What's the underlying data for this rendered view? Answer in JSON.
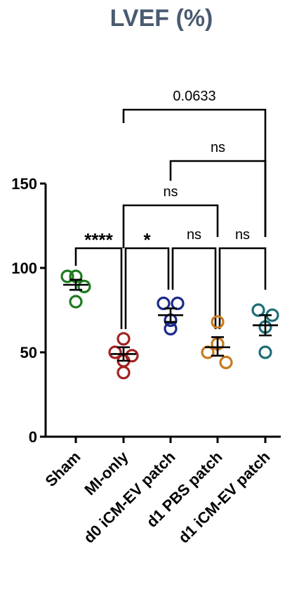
{
  "chart_data": {
    "type": "scatter",
    "title": "LVEF (%)",
    "xlabel": "",
    "ylabel": "",
    "ylim": [
      0,
      150
    ],
    "yticks": [
      0,
      50,
      100,
      150
    ],
    "categories": [
      "Sham",
      "MI-only",
      "d0 iCM-EV patch",
      "d1 PBS patch",
      "d1 iCM-EV patch"
    ],
    "colors": [
      "#1f7a1f",
      "#a32020",
      "#1c2a8a",
      "#c87a1e",
      "#1d6e76"
    ],
    "groups": [
      {
        "category": "Sham",
        "points": [
          95,
          95,
          89,
          80
        ],
        "mean": 90,
        "sem_low": 87,
        "sem_high": 93
      },
      {
        "category": "MI-only",
        "points": [
          58,
          50,
          48,
          45,
          38
        ],
        "mean": 49,
        "sem_low": 45,
        "sem_high": 53
      },
      {
        "category": "d0 iCM-EV patch",
        "points": [
          79,
          79,
          69,
          64
        ],
        "mean": 72,
        "sem_low": 68,
        "sem_high": 76
      },
      {
        "category": "d1 PBS patch",
        "points": [
          68,
          55,
          50,
          44
        ],
        "mean": 53,
        "sem_low": 48,
        "sem_high": 59
      },
      {
        "category": "d1 iCM-EV patch",
        "points": [
          75,
          72,
          65,
          50
        ],
        "mean": 66,
        "sem_low": 60,
        "sem_high": 72
      }
    ],
    "comparisons": [
      {
        "from": 0,
        "to": 1,
        "label": "****",
        "style": "bold"
      },
      {
        "from": 1,
        "to": 2,
        "label": "*",
        "style": "bold"
      },
      {
        "from": 2,
        "to": 3,
        "label": "ns",
        "style": "normal"
      },
      {
        "from": 3,
        "to": 4,
        "label": "ns",
        "style": "normal"
      },
      {
        "from": 1,
        "to": 3,
        "label": "ns",
        "style": "normal"
      },
      {
        "from": 2,
        "to": 4,
        "label": "ns",
        "style": "normal"
      },
      {
        "from": 1,
        "to": 4,
        "label": "0.0633",
        "style": "normal"
      }
    ],
    "grid": false,
    "legend": "none"
  }
}
